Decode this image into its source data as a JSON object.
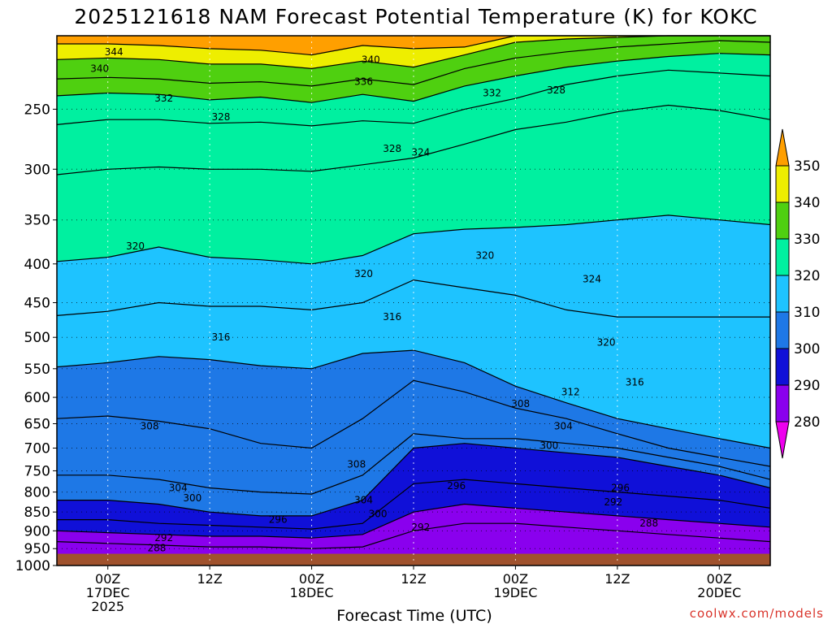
{
  "chart_data": {
    "type": "contour",
    "title": "2025121618 NAM Forecast Potential Temperature (K) for KOKC",
    "xlabel": "Forecast Time (UTC)",
    "ylabel": "",
    "y_scale": "log",
    "y_reversed": true,
    "y_range_hPa": [
      1000,
      200
    ],
    "y_ticks": [
      250,
      300,
      350,
      400,
      450,
      500,
      550,
      600,
      650,
      700,
      750,
      800,
      850,
      900,
      950,
      1000
    ],
    "x_range": [
      "2025-12-16T18Z",
      "2025-12-20T06Z"
    ],
    "x_ticks": [
      {
        "label": "00Z",
        "date": "17DEC",
        "year": "2025",
        "time": "2025-12-17T00Z"
      },
      {
        "label": "12Z",
        "date": "",
        "year": "",
        "time": "2025-12-17T12Z"
      },
      {
        "label": "00Z",
        "date": "18DEC",
        "year": "",
        "time": "2025-12-18T00Z"
      },
      {
        "label": "12Z",
        "date": "",
        "year": "",
        "time": "2025-12-18T12Z"
      },
      {
        "label": "00Z",
        "date": "19DEC",
        "year": "",
        "time": "2025-12-19T00Z"
      },
      {
        "label": "12Z",
        "date": "",
        "year": "",
        "time": "2025-12-19T12Z"
      },
      {
        "label": "00Z",
        "date": "20DEC",
        "year": "",
        "time": "2025-12-20T00Z"
      }
    ],
    "grid": true,
    "colorbar": {
      "placement": "right",
      "levels": [
        280,
        290,
        300,
        310,
        320,
        330,
        340,
        350
      ],
      "colors": [
        "#ee00ee",
        "#8a00ee",
        "#1010d8",
        "#1e78e6",
        "#1ec3ff",
        "#00f0a0",
        "#4fd010",
        "#eeee00",
        "#ff9f00"
      ]
    },
    "ground_color": "#a0522d",
    "contour_interval_K": 4,
    "isentropes": [
      {
        "theta": 344,
        "hPa": [
          205,
          205,
          206,
          208,
          209,
          212,
          206,
          208,
          207,
          200,
          200,
          200,
          200,
          200,
          200
        ]
      },
      {
        "theta": 340,
        "hPa": [
          215,
          214,
          215,
          218,
          218,
          221,
          216,
          220,
          212,
          204,
          202,
          201,
          200,
          200,
          200
        ]
      },
      {
        "theta": 336,
        "hPa": [
          228,
          227,
          228,
          231,
          230,
          233,
          228,
          232,
          221,
          214,
          210,
          207,
          205,
          203,
          204
        ]
      },
      {
        "theta": 332,
        "hPa": [
          240,
          238,
          239,
          243,
          241,
          245,
          239,
          244,
          233,
          226,
          220,
          216,
          213,
          211,
          212
        ]
      },
      {
        "theta": 328,
        "hPa": [
          262,
          258,
          258,
          261,
          260,
          263,
          259,
          261,
          250,
          242,
          232,
          226,
          222,
          224,
          226
        ]
      },
      {
        "theta": 324,
        "hPa": [
          305,
          300,
          298,
          300,
          300,
          302,
          296,
          290,
          278,
          266,
          260,
          252,
          247,
          251,
          258
        ]
      },
      {
        "theta": 320,
        "hPa": [
          397,
          392,
          380,
          392,
          395,
          400,
          390,
          365,
          360,
          358,
          355,
          350,
          345,
          350,
          355
        ]
      },
      {
        "theta": 316,
        "hPa": [
          468,
          462,
          450,
          455,
          455,
          460,
          450,
          420,
          430,
          440,
          460,
          470,
          470,
          470,
          470
        ]
      },
      {
        "theta": 312,
        "hPa": [
          547,
          540,
          530,
          535,
          545,
          550,
          525,
          520,
          540,
          580,
          610,
          640,
          660,
          680,
          700
        ]
      },
      {
        "theta": 308,
        "hPa": [
          640,
          635,
          645,
          660,
          690,
          700,
          640,
          570,
          590,
          620,
          640,
          670,
          700,
          720,
          740
        ]
      },
      {
        "theta": 304,
        "hPa": [
          760,
          760,
          770,
          790,
          800,
          805,
          760,
          670,
          680,
          680,
          690,
          700,
          720,
          740,
          770
        ]
      },
      {
        "theta": 300,
        "hPa": [
          820,
          820,
          830,
          850,
          860,
          860,
          820,
          700,
          690,
          700,
          710,
          720,
          740,
          760,
          790
        ]
      },
      {
        "theta": 296,
        "hPa": [
          870,
          870,
          880,
          885,
          890,
          895,
          880,
          780,
          770,
          780,
          790,
          800,
          810,
          820,
          840
        ]
      },
      {
        "theta": 292,
        "hPa": [
          900,
          905,
          910,
          915,
          915,
          920,
          910,
          850,
          830,
          840,
          850,
          860,
          870,
          880,
          890
        ]
      },
      {
        "theta": 288,
        "hPa": [
          930,
          935,
          940,
          945,
          945,
          950,
          945,
          900,
          880,
          880,
          890,
          900,
          910,
          920,
          930
        ]
      }
    ],
    "contour_labels": [
      {
        "text": "344",
        "t": 0.08,
        "hPa": 210
      },
      {
        "text": "340",
        "t": 0.06,
        "hPa": 221
      },
      {
        "text": "340",
        "t": 0.44,
        "hPa": 215
      },
      {
        "text": "336",
        "t": 0.43,
        "hPa": 230
      },
      {
        "text": "332",
        "t": 0.15,
        "hPa": 242
      },
      {
        "text": "332",
        "t": 0.61,
        "hPa": 238
      },
      {
        "text": "328",
        "t": 0.23,
        "hPa": 256
      },
      {
        "text": "328",
        "t": 0.47,
        "hPa": 282
      },
      {
        "text": "328",
        "t": 0.7,
        "hPa": 236
      },
      {
        "text": "324",
        "t": 0.51,
        "hPa": 285
      },
      {
        "text": "324",
        "t": 0.75,
        "hPa": 419
      },
      {
        "text": "320",
        "t": 0.11,
        "hPa": 379
      },
      {
        "text": "320",
        "t": 0.43,
        "hPa": 412
      },
      {
        "text": "320",
        "t": 0.6,
        "hPa": 390
      },
      {
        "text": "320",
        "t": 0.77,
        "hPa": 508
      },
      {
        "text": "316",
        "t": 0.23,
        "hPa": 500
      },
      {
        "text": "316",
        "t": 0.47,
        "hPa": 470
      },
      {
        "text": "316",
        "t": 0.81,
        "hPa": 573
      },
      {
        "text": "312",
        "t": 0.72,
        "hPa": 590
      },
      {
        "text": "308",
        "t": 0.13,
        "hPa": 655
      },
      {
        "text": "308",
        "t": 0.42,
        "hPa": 735
      },
      {
        "text": "308",
        "t": 0.65,
        "hPa": 612
      },
      {
        "text": "304",
        "t": 0.17,
        "hPa": 790
      },
      {
        "text": "304",
        "t": 0.43,
        "hPa": 820
      },
      {
        "text": "304",
        "t": 0.71,
        "hPa": 655
      },
      {
        "text": "300",
        "t": 0.19,
        "hPa": 815
      },
      {
        "text": "300",
        "t": 0.45,
        "hPa": 855
      },
      {
        "text": "300",
        "t": 0.69,
        "hPa": 695
      },
      {
        "text": "296",
        "t": 0.31,
        "hPa": 870
      },
      {
        "text": "296",
        "t": 0.56,
        "hPa": 785
      },
      {
        "text": "296",
        "t": 0.79,
        "hPa": 790
      },
      {
        "text": "292",
        "t": 0.15,
        "hPa": 920
      },
      {
        "text": "292",
        "t": 0.51,
        "hPa": 890
      },
      {
        "text": "292",
        "t": 0.78,
        "hPa": 825
      },
      {
        "text": "288",
        "t": 0.14,
        "hPa": 948
      },
      {
        "text": "288",
        "t": 0.83,
        "hPa": 880
      }
    ]
  },
  "credit": "coolwx.com/models"
}
